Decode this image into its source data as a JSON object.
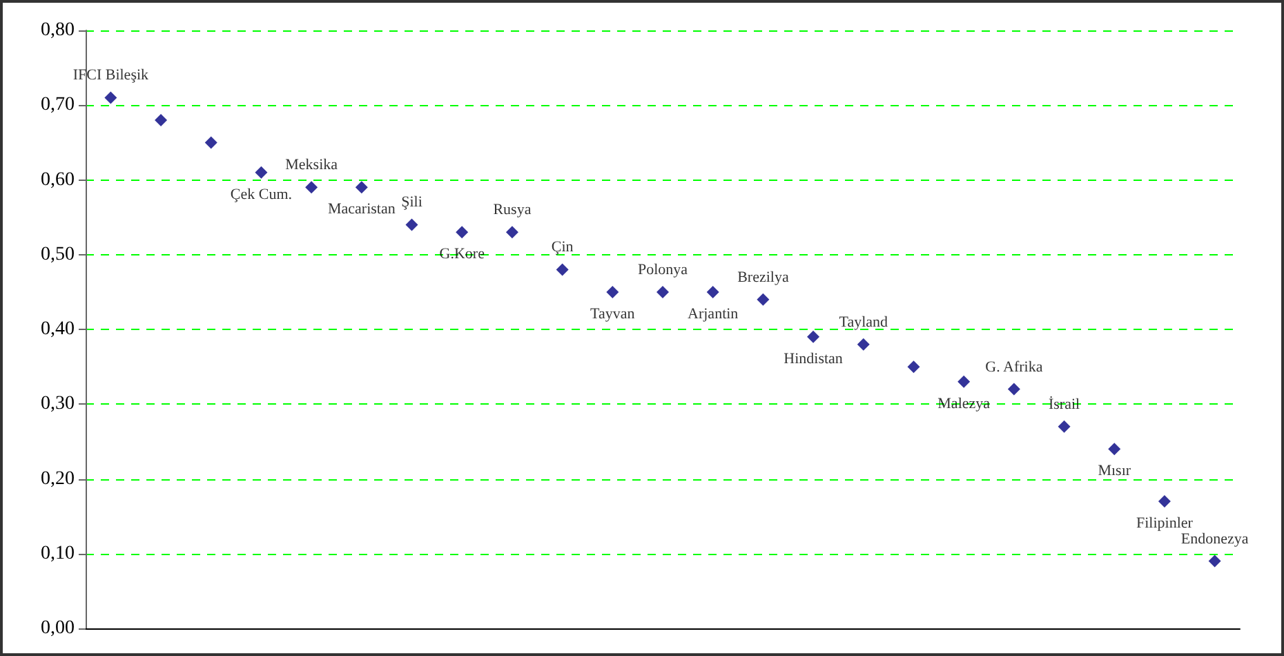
{
  "chart_data": {
    "type": "scatter",
    "categories": [
      "IFCI Bileşik",
      null,
      null,
      "Çek Cum.",
      "Meksika",
      "Macaristan",
      "Şili",
      "G.Kore",
      "Rusya",
      "Çin",
      "Tayvan",
      "Polonya",
      "Arjantin",
      "Brezilya",
      "Hindistan",
      "Tayland",
      null,
      "Malezya",
      "G. Afrika",
      "İsrail",
      "Mısır",
      "Filipinler",
      "Endonezya"
    ],
    "series": [
      {
        "color": "#000080",
        "values": [
          0.71,
          0.68,
          0.65,
          0.61,
          0.59,
          0.59,
          0.54,
          0.53,
          0.53,
          0.48,
          0.45,
          0.45,
          0.45,
          0.44,
          0.39,
          0.38,
          0.35,
          0.33,
          0.32,
          0.27,
          0.24,
          0.17,
          0.09
        ]
      }
    ],
    "ylim": [
      0,
      0.8
    ],
    "yticks": [
      {
        "value": 0,
        "label": "0,00"
      },
      {
        "value": 0.1,
        "label": "0,10"
      },
      {
        "value": 0.2,
        "label": "0,20"
      },
      {
        "value": 0.3,
        "label": "0,30"
      },
      {
        "value": 0.4,
        "label": "0,40"
      },
      {
        "value": 0.5,
        "label": "0,50"
      },
      {
        "value": 0.6,
        "label": "0,60"
      },
      {
        "value": 0.7,
        "label": "0,70"
      },
      {
        "value": 0.8,
        "label": "0,80"
      }
    ],
    "grid": "y",
    "marker": "diamond",
    "tick_labels": "y"
  }
}
